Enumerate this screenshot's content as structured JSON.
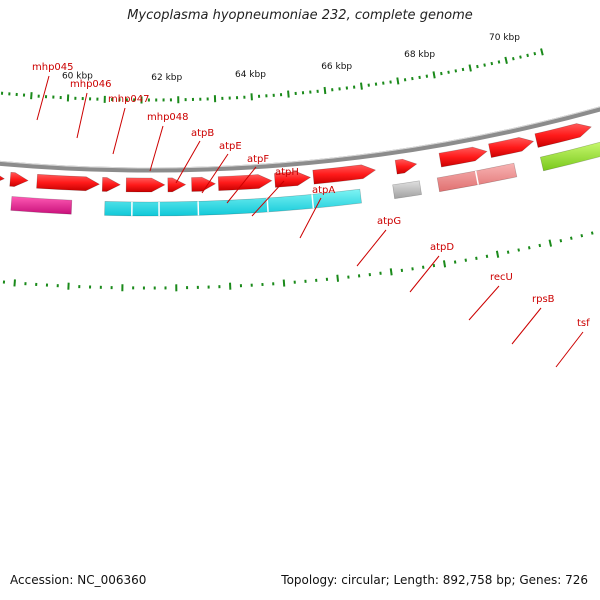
{
  "title": "Mycoplasma hyopneumoniae 232, complete genome",
  "footer": {
    "accession": "Accession: NC_006360",
    "summary": "Topology: circular; Length: 892,758 bp; Genes: 726"
  },
  "colors": {
    "backbone": "#8c8c8c",
    "gene_red": "#ff1a1a",
    "label_red": "#cc0000",
    "tick_green": "#1a8a1a",
    "magenta": "#e61a8c",
    "cyan": "#1ae6e6",
    "gray_gene": "#bfbfbf",
    "pink": "#f08c8c",
    "lime": "#99e633"
  },
  "kbp_ticks": [
    "60 kbp",
    "62 kbp",
    "64 kbp",
    "66 kbp",
    "68 kbp",
    "70 kbp"
  ],
  "gene_labels": [
    "mhp045",
    "mhp046",
    "mhp047",
    "mhp048",
    "atpB",
    "atpE",
    "atpF",
    "atpH",
    "atpA",
    "atpG",
    "atpD",
    "recU",
    "rpsB",
    "tsf"
  ],
  "colored_features": [
    {
      "name": "mhp046",
      "color": "magenta"
    },
    {
      "name": "atp operon",
      "color": "cyan"
    },
    {
      "name": "recU",
      "color": "gray_gene"
    },
    {
      "name": "rpsB",
      "color": "pink"
    },
    {
      "name": "tsf",
      "color": "lime"
    }
  ]
}
